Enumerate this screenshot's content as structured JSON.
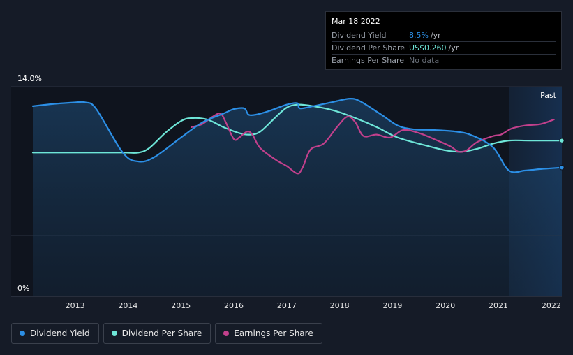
{
  "tooltip": {
    "date": "Mar 18 2022",
    "rows": [
      {
        "label": "Dividend Yield",
        "value": "8.5%",
        "unit": "/yr"
      },
      {
        "label": "Dividend Per Share",
        "value": "US$0.260",
        "unit": "/yr"
      },
      {
        "label": "Earnings Per Share",
        "value": "No data",
        "unit": ""
      }
    ]
  },
  "past_label": "Past",
  "legend": [
    {
      "label": "Dividend Yield",
      "color": "#2c8fe6"
    },
    {
      "label": "Dividend Per Share",
      "color": "#6ee6d8"
    },
    {
      "label": "Earnings Per Share",
      "color": "#c2408c"
    }
  ],
  "chart_data": {
    "type": "line",
    "y_tick_labels": [
      "14.0%",
      "0%"
    ],
    "ylim": [
      0,
      14
    ],
    "xlim": [
      2012.2,
      2022.2
    ],
    "x_ticks": [
      2013,
      2014,
      2015,
      2016,
      2017,
      2018,
      2019,
      2020,
      2021,
      2022
    ],
    "grid": true,
    "past_region_start": 2021.2,
    "series": [
      {
        "name": "Dividend Yield",
        "color": "#2c8fe6",
        "filled": true,
        "points": [
          [
            2012.2,
            12.7
          ],
          [
            2012.6,
            12.85
          ],
          [
            2013.0,
            12.95
          ],
          [
            2013.2,
            12.95
          ],
          [
            2013.4,
            12.5
          ],
          [
            2013.9,
            9.6
          ],
          [
            2014.2,
            9.0
          ],
          [
            2014.5,
            9.3
          ],
          [
            2015.0,
            10.6
          ],
          [
            2015.4,
            11.6
          ],
          [
            2015.8,
            12.2
          ],
          [
            2016.0,
            12.5
          ],
          [
            2016.2,
            12.55
          ],
          [
            2016.3,
            12.1
          ],
          [
            2016.6,
            12.3
          ],
          [
            2017.0,
            12.8
          ],
          [
            2017.2,
            12.9
          ],
          [
            2017.25,
            12.55
          ],
          [
            2017.5,
            12.7
          ],
          [
            2017.9,
            13.0
          ],
          [
            2018.2,
            13.2
          ],
          [
            2018.4,
            13.0
          ],
          [
            2018.8,
            12.1
          ],
          [
            2019.1,
            11.4
          ],
          [
            2019.4,
            11.15
          ],
          [
            2019.8,
            11.1
          ],
          [
            2020.2,
            11.0
          ],
          [
            2020.5,
            10.75
          ],
          [
            2020.9,
            9.95
          ],
          [
            2021.2,
            8.4
          ],
          [
            2021.5,
            8.4
          ],
          [
            2021.8,
            8.5
          ],
          [
            2022.2,
            8.6
          ]
        ]
      },
      {
        "name": "Dividend Per Share",
        "color": "#6ee6d8",
        "filled": false,
        "points": [
          [
            2012.2,
            9.6
          ],
          [
            2013.0,
            9.6
          ],
          [
            2013.9,
            9.6
          ],
          [
            2014.2,
            9.6
          ],
          [
            2014.4,
            9.9
          ],
          [
            2014.7,
            10.9
          ],
          [
            2015.0,
            11.7
          ],
          [
            2015.2,
            11.9
          ],
          [
            2015.5,
            11.8
          ],
          [
            2015.8,
            11.3
          ],
          [
            2016.1,
            10.9
          ],
          [
            2016.3,
            10.8
          ],
          [
            2016.5,
            11.0
          ],
          [
            2016.8,
            12.0
          ],
          [
            2017.0,
            12.6
          ],
          [
            2017.2,
            12.8
          ],
          [
            2017.5,
            12.7
          ],
          [
            2017.9,
            12.4
          ],
          [
            2018.3,
            11.9
          ],
          [
            2018.7,
            11.3
          ],
          [
            2019.1,
            10.6
          ],
          [
            2019.6,
            10.1
          ],
          [
            2020.0,
            9.75
          ],
          [
            2020.3,
            9.65
          ],
          [
            2020.6,
            9.85
          ],
          [
            2020.9,
            10.2
          ],
          [
            2021.2,
            10.4
          ],
          [
            2021.6,
            10.4
          ],
          [
            2022.2,
            10.4
          ]
        ]
      },
      {
        "name": "Earnings Per Share",
        "color": "#c2408c",
        "filled": false,
        "points": [
          [
            2015.2,
            11.3
          ],
          [
            2015.4,
            11.5
          ],
          [
            2015.6,
            12.0
          ],
          [
            2015.75,
            12.2
          ],
          [
            2015.85,
            11.6
          ],
          [
            2016.0,
            10.5
          ],
          [
            2016.1,
            10.6
          ],
          [
            2016.25,
            11.0
          ],
          [
            2016.35,
            10.8
          ],
          [
            2016.5,
            9.9
          ],
          [
            2016.8,
            9.1
          ],
          [
            2017.0,
            8.7
          ],
          [
            2017.2,
            8.2
          ],
          [
            2017.3,
            8.6
          ],
          [
            2017.45,
            9.8
          ],
          [
            2017.7,
            10.2
          ],
          [
            2017.95,
            11.3
          ],
          [
            2018.15,
            12.0
          ],
          [
            2018.3,
            11.6
          ],
          [
            2018.45,
            10.7
          ],
          [
            2018.7,
            10.8
          ],
          [
            2018.95,
            10.6
          ],
          [
            2019.2,
            11.1
          ],
          [
            2019.5,
            10.9
          ],
          [
            2019.85,
            10.4
          ],
          [
            2020.1,
            10.0
          ],
          [
            2020.25,
            9.65
          ],
          [
            2020.4,
            9.75
          ],
          [
            2020.6,
            10.3
          ],
          [
            2020.9,
            10.7
          ],
          [
            2021.05,
            10.8
          ],
          [
            2021.25,
            11.2
          ],
          [
            2021.5,
            11.4
          ],
          [
            2021.8,
            11.5
          ],
          [
            2022.05,
            11.8
          ]
        ]
      }
    ]
  }
}
